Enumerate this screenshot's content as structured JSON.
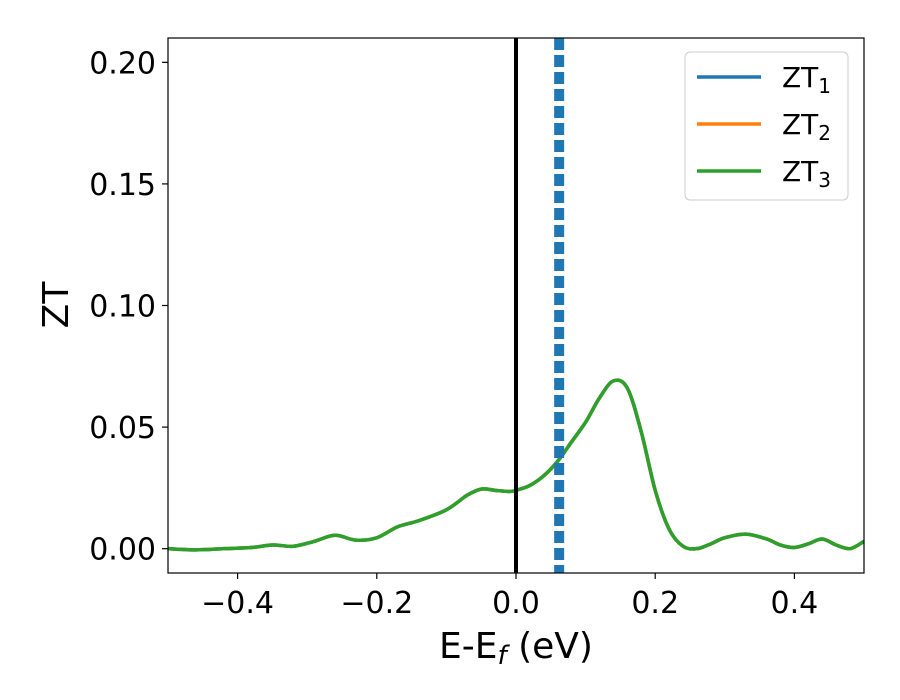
{
  "chart_data": {
    "type": "line",
    "title": "",
    "xlabel": "E-E",
    "xlabel_sub": "f",
    "xlabel_unit": " (eV)",
    "ylabel": "ZT",
    "xlim": [
      -0.5,
      0.5
    ],
    "ylim": [
      -0.01,
      0.21
    ],
    "xticks": [
      -0.4,
      -0.2,
      0.0,
      0.2,
      0.4
    ],
    "xtick_labels": [
      "−0.4",
      "−0.2",
      "0.0",
      "0.2",
      "0.4"
    ],
    "yticks": [
      0.0,
      0.05,
      0.1,
      0.15,
      0.2
    ],
    "ytick_labels": [
      "0.00",
      "0.05",
      "0.10",
      "0.15",
      "0.20"
    ],
    "grid": false,
    "legend_position": "top-right",
    "vertical_lines": [
      {
        "x": 0.0,
        "color": "#000000",
        "style": "solid"
      },
      {
        "x": 0.062,
        "color": "#1f77b4",
        "style": "dashed"
      }
    ],
    "x": [
      -0.5,
      -0.46,
      -0.42,
      -0.38,
      -0.35,
      -0.32,
      -0.29,
      -0.26,
      -0.23,
      -0.2,
      -0.17,
      -0.14,
      -0.1,
      -0.07,
      -0.05,
      -0.03,
      -0.01,
      0.0,
      0.02,
      0.04,
      0.06,
      0.08,
      0.1,
      0.12,
      0.14,
      0.16,
      0.18,
      0.2,
      0.22,
      0.24,
      0.26,
      0.28,
      0.3,
      0.33,
      0.36,
      0.38,
      0.4,
      0.42,
      0.44,
      0.46,
      0.48,
      0.5
    ],
    "series": [
      {
        "name": "ZT",
        "name_sub": "1",
        "color": "#1f77b4",
        "values": [
          0.0,
          -0.0005,
          0.0,
          0.0005,
          0.0015,
          0.001,
          0.003,
          0.0055,
          0.0035,
          0.0045,
          0.009,
          0.0115,
          0.016,
          0.022,
          0.0245,
          0.024,
          0.0235,
          0.024,
          0.026,
          0.03,
          0.036,
          0.044,
          0.052,
          0.062,
          0.069,
          0.066,
          0.048,
          0.024,
          0.008,
          0.001,
          0.0,
          0.002,
          0.0045,
          0.006,
          0.004,
          0.0015,
          0.0005,
          0.002,
          0.004,
          0.0015,
          0.0,
          0.003
        ]
      },
      {
        "name": "ZT",
        "name_sub": "2",
        "color": "#ff7f0e",
        "values": [
          0.0,
          -0.0005,
          0.0,
          0.0005,
          0.0015,
          0.001,
          0.003,
          0.0055,
          0.0035,
          0.0045,
          0.009,
          0.0115,
          0.016,
          0.022,
          0.0245,
          0.024,
          0.0235,
          0.024,
          0.026,
          0.03,
          0.036,
          0.044,
          0.052,
          0.062,
          0.069,
          0.066,
          0.048,
          0.024,
          0.008,
          0.001,
          0.0,
          0.002,
          0.0045,
          0.006,
          0.004,
          0.0015,
          0.0005,
          0.002,
          0.004,
          0.0015,
          0.0,
          0.003
        ]
      },
      {
        "name": "ZT",
        "name_sub": "3",
        "color": "#2ca02c",
        "values": [
          0.0,
          -0.0005,
          0.0,
          0.0005,
          0.0015,
          0.001,
          0.003,
          0.0055,
          0.0035,
          0.0045,
          0.009,
          0.0115,
          0.016,
          0.022,
          0.0245,
          0.024,
          0.0235,
          0.024,
          0.026,
          0.03,
          0.036,
          0.044,
          0.052,
          0.062,
          0.069,
          0.066,
          0.048,
          0.024,
          0.008,
          0.001,
          0.0,
          0.002,
          0.0045,
          0.006,
          0.004,
          0.0015,
          0.0005,
          0.002,
          0.004,
          0.0015,
          0.0,
          0.003
        ]
      }
    ]
  }
}
